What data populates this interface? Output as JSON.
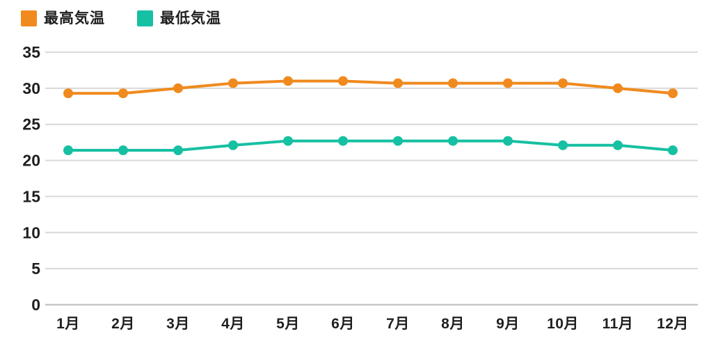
{
  "legend": {
    "items": [
      {
        "label": "最高気温",
        "color": "#F08A1E"
      },
      {
        "label": "最低気温",
        "color": "#16C0A2"
      }
    ]
  },
  "chart_data": {
    "type": "line",
    "title": "",
    "xlabel": "",
    "ylabel": "",
    "categories": [
      "1月",
      "2月",
      "3月",
      "4月",
      "5月",
      "6月",
      "7月",
      "8月",
      "9月",
      "10月",
      "11月",
      "12月"
    ],
    "series": [
      {
        "name": "最高気温",
        "color": "#F08A1E",
        "values": [
          29.3,
          29.3,
          30.0,
          30.7,
          31.0,
          31.0,
          30.7,
          30.7,
          30.7,
          30.7,
          30.0,
          29.3
        ]
      },
      {
        "name": "最低気温",
        "color": "#16C0A2",
        "values": [
          21.4,
          21.4,
          21.4,
          22.1,
          22.7,
          22.7,
          22.7,
          22.7,
          22.7,
          22.1,
          22.1,
          21.4
        ]
      }
    ],
    "ylim": [
      0,
      35
    ],
    "yticks": [
      0,
      5,
      10,
      15,
      20,
      25,
      30,
      35
    ],
    "grid": true,
    "legend_position": "top-left"
  },
  "colors": {
    "grid": "#d9d9d9",
    "baseline": "#c7c7c7",
    "text": "#1f1f1f",
    "background": "#ffffff"
  }
}
